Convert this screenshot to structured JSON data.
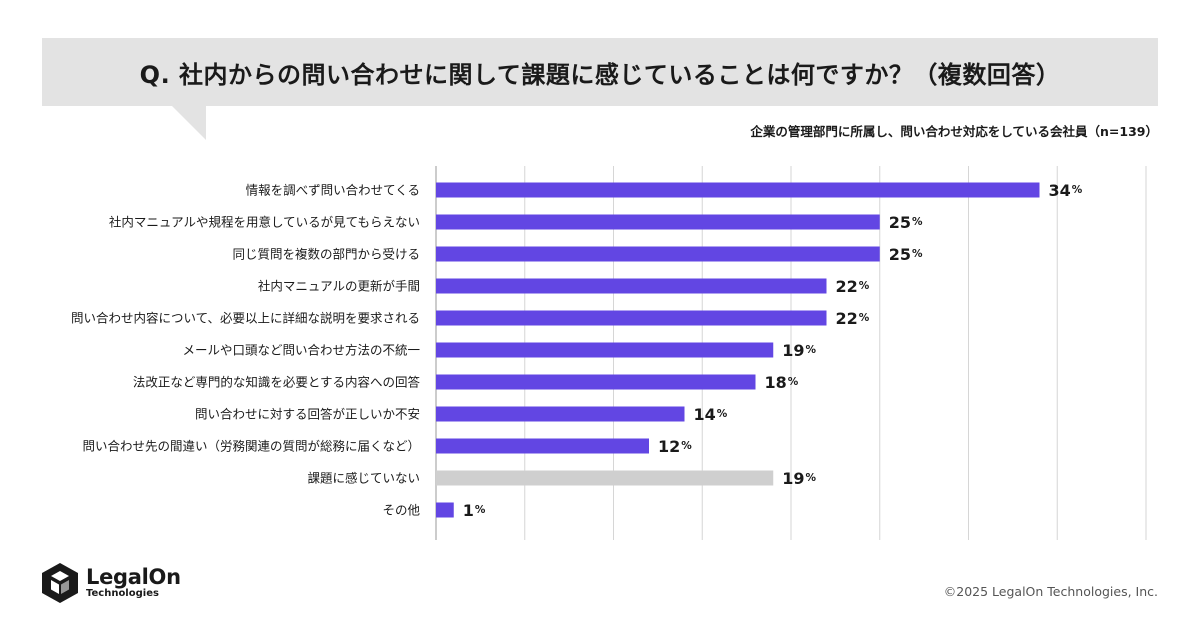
{
  "header": {
    "question": "Q. 社内からの問い合わせに関して課題に感じていることは何ですか？（複数回答）",
    "respondents": "企業の管理部門に所属し、問い合わせ対応をしている会社員（n=139）"
  },
  "colors": {
    "primary_bar": "#6246e3",
    "secondary_bar": "#cfcfcf",
    "grid": "#d6d6d6",
    "banner": "#e3e3e3"
  },
  "chart_data": {
    "type": "bar",
    "orientation": "horizontal",
    "unit": "%",
    "xlim": [
      0,
      40
    ],
    "grid": true,
    "categories": [
      "情報を調べず問い合わせてくる",
      "社内マニュアルや規程を用意しているが見てもらえない",
      "同じ質問を複数の部門から受ける",
      "社内マニュアルの更新が手間",
      "問い合わせ内容について、必要以上に詳細な説明を要求される",
      "メールや口頭など問い合わせ方法の不統一",
      "法改正など専門的な知識を必要とする内容への回答",
      "問い合わせに対する回答が正しいか不安",
      "問い合わせ先の間違い（労務関連の質問が総務に届くなど）",
      "課題に感じていない",
      "その他"
    ],
    "values": [
      34,
      25,
      25,
      22,
      22,
      19,
      18,
      14,
      12,
      19,
      1
    ],
    "highlight": [
      true,
      true,
      true,
      true,
      true,
      true,
      true,
      true,
      true,
      false,
      true
    ]
  },
  "footer": {
    "brand_name": "LegalOn",
    "brand_sub": "Technologies",
    "copyright": "©2025 LegalOn Technologies, Inc.",
    "logo_icon": "hexagon-logo-icon"
  }
}
